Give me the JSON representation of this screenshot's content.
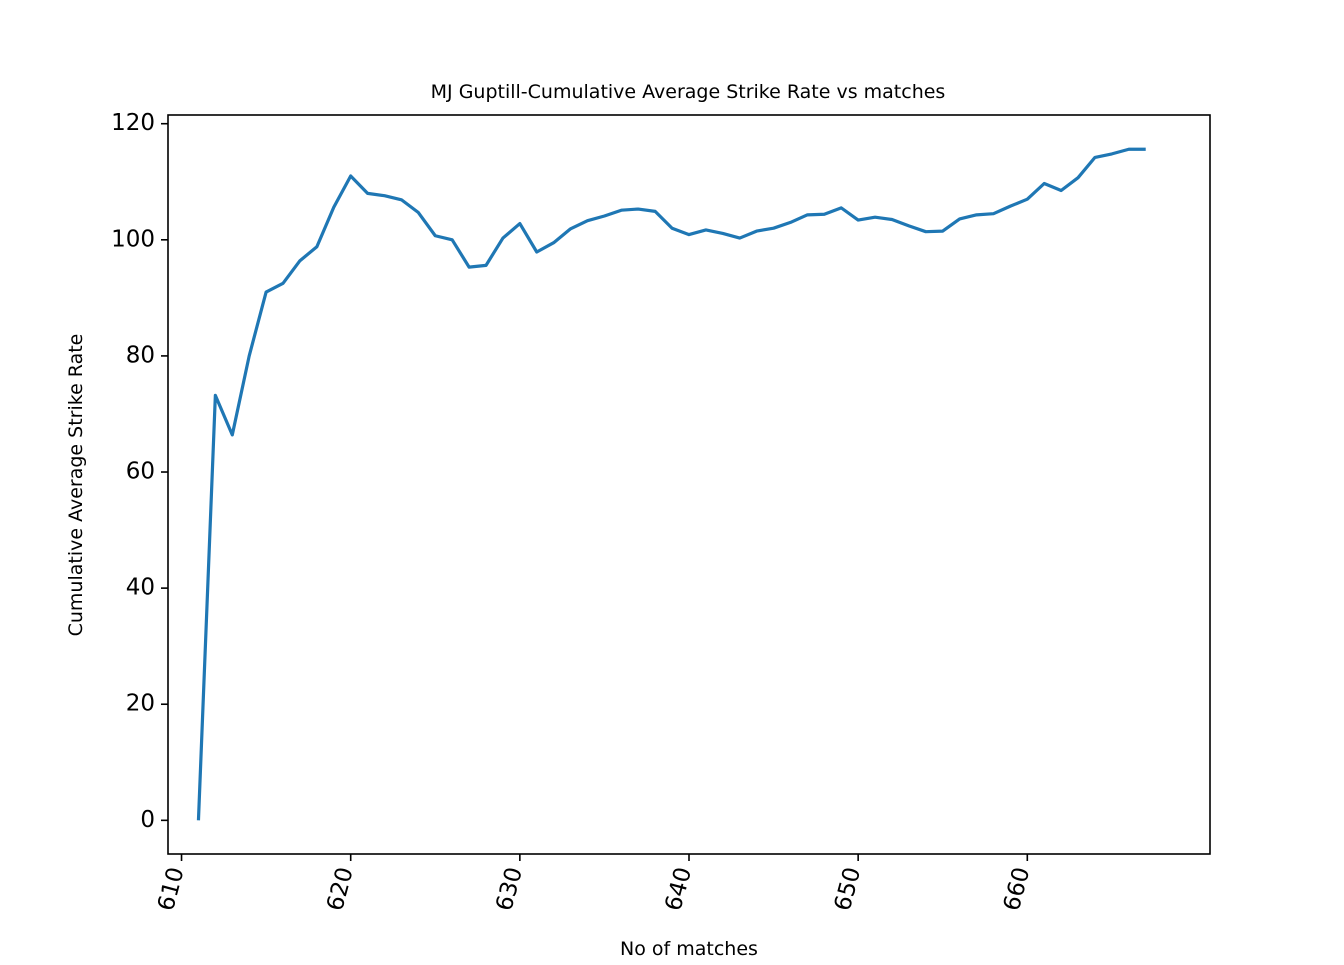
{
  "chart_data": {
    "type": "line",
    "title": "MJ Guptill-Cumulative Average Strike Rate vs matches",
    "xlabel": "No of matches",
    "ylabel": "Cumulative Average Strike Rate",
    "xlim": [
      609.2,
      670.8
    ],
    "ylim": [
      -5.8,
      121.5
    ],
    "xticks": [
      610,
      620,
      630,
      640,
      650,
      660
    ],
    "yticks": [
      0,
      20,
      40,
      60,
      80,
      100,
      120
    ],
    "x_tick_rotation_deg": -75,
    "grid": false,
    "legend": "none",
    "series": [
      {
        "color": "#1f77b4",
        "x": [
          611,
          612,
          613,
          614,
          615,
          616,
          617,
          618,
          619,
          620,
          621,
          622,
          623,
          624,
          625,
          626,
          627,
          628,
          629,
          630,
          631,
          632,
          633,
          634,
          635,
          636,
          637,
          638,
          639,
          640,
          641,
          642,
          643,
          644,
          645,
          646,
          647,
          648,
          649,
          650,
          651,
          652,
          653,
          654,
          655,
          656,
          657,
          658,
          659,
          660,
          661,
          662,
          663,
          664,
          665,
          666,
          667
        ],
        "values": [
          0.0,
          73.2,
          66.4,
          80.0,
          91.0,
          92.5,
          96.4,
          98.8,
          105.6,
          111.0,
          108.0,
          107.6,
          106.9,
          104.7,
          100.7,
          100.0,
          95.3,
          95.6,
          100.3,
          102.8,
          97.9,
          99.5,
          101.9,
          103.3,
          104.1,
          105.1,
          105.3,
          104.9,
          102.0,
          100.9,
          101.7,
          101.1,
          100.3,
          101.5,
          102.0,
          103.0,
          104.3,
          104.4,
          105.5,
          103.4,
          103.9,
          103.5,
          102.4,
          101.4,
          101.5,
          103.6,
          104.3,
          104.5,
          105.8,
          107.0,
          109.7,
          108.5,
          110.7,
          114.2,
          114.8,
          115.6,
          115.6
        ]
      }
    ]
  }
}
